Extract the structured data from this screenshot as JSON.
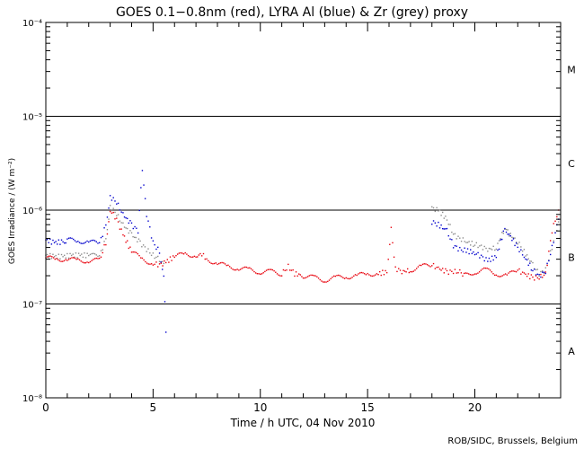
{
  "chart_data": {
    "type": "scatter",
    "title": "GOES 0.1−0.8nm (red), LYRA Al (blue) & Zr (grey) proxy",
    "xlabel": "Time / h UTC, 04 Nov 2010",
    "ylabel": "GOES Irradiance / (W m⁻²)",
    "credit": "ROB/SIDC, Brussels, Belgium",
    "xlim": [
      0,
      24
    ],
    "ylim": [
      1e-08,
      0.0001
    ],
    "yscale": "log",
    "x_ticks": [
      {
        "value": 0,
        "label": "0"
      },
      {
        "value": 5,
        "label": "5"
      },
      {
        "value": 10,
        "label": "10"
      },
      {
        "value": 15,
        "label": "15"
      },
      {
        "value": 20,
        "label": "20"
      }
    ],
    "y_ticks": [
      {
        "exp": -8,
        "label": "10⁻⁸"
      },
      {
        "exp": -7,
        "label": "10⁻⁷"
      },
      {
        "exp": -6,
        "label": "10⁻⁶"
      },
      {
        "exp": -5,
        "label": "10⁻⁵"
      },
      {
        "exp": -4,
        "label": "10⁻⁴"
      }
    ],
    "class_lines": [
      1e-07,
      1e-06,
      1e-05
    ],
    "flare_classes": [
      {
        "label": "A",
        "value": 3.16e-08
      },
      {
        "label": "B",
        "value": 3.16e-07
      },
      {
        "label": "C",
        "value": 3.16e-06
      },
      {
        "label": "M",
        "value": 3.16e-05
      }
    ],
    "colors": {
      "goes": "#e8000b",
      "al": "#0000cc",
      "zr": "#8c8c8c"
    },
    "series": [
      {
        "name": "GOES 0.1−0.8nm",
        "color": "red",
        "x": [
          0.0,
          0.5,
          1.0,
          1.5,
          2.0,
          2.5,
          2.8,
          3.0,
          3.3,
          3.6,
          4.0,
          4.5,
          5.0,
          5.3,
          5.6,
          6.0,
          6.5,
          7.0,
          7.2,
          7.5,
          8.0,
          8.5,
          9.0,
          9.5,
          10.0,
          10.5,
          11.0,
          11.3,
          11.6,
          12.0,
          12.5,
          13.0,
          13.5,
          14.0,
          14.5,
          15.0,
          15.5,
          15.9,
          16.1,
          16.3,
          16.6,
          17.0,
          17.5,
          18.0,
          18.3,
          18.7,
          19.0,
          19.3,
          19.5,
          20.0,
          20.5,
          21.0,
          21.5,
          22.0,
          22.3,
          22.7,
          23.0,
          23.3,
          23.6,
          23.9
        ],
        "y": [
          3.1e-07,
          3e-07,
          3e-07,
          2.9e-07,
          2.9e-07,
          2.9e-07,
          4.5e-07,
          1e-06,
          8e-07,
          5.5e-07,
          3.6e-07,
          3e-07,
          2.7e-07,
          2.6e-07,
          2.8e-07,
          3.2e-07,
          3.4e-07,
          3.3e-07,
          3.5e-07,
          3e-07,
          2.7e-07,
          2.5e-07,
          2.4e-07,
          2.3e-07,
          2.2e-07,
          2.2e-07,
          2.1e-07,
          2.5e-07,
          2.1e-07,
          2e-07,
          1.9e-07,
          1.8e-07,
          1.9e-07,
          1.95e-07,
          2e-07,
          2.1e-07,
          2.1e-07,
          2.2e-07,
          6.5e-07,
          2.4e-07,
          2.2e-07,
          2.3e-07,
          2.5e-07,
          2.6e-07,
          2.4e-07,
          2.2e-07,
          2.2e-07,
          2.2e-07,
          2e-07,
          2.2e-07,
          2.3e-07,
          2.1e-07,
          2e-07,
          2.3e-07,
          2.1e-07,
          1.9e-07,
          1.9e-07,
          2.1e-07,
          6e-07,
          1e-06
        ]
      },
      {
        "name": "LYRA Al",
        "color": "blue",
        "x": [
          0.0,
          0.4,
          0.8,
          1.0,
          1.5,
          2.0,
          2.5,
          2.8,
          3.0,
          3.3,
          3.6,
          4.0,
          4.3,
          4.5,
          4.7,
          5.0,
          5.3,
          5.5,
          5.6,
          18.0,
          18.3,
          18.7,
          19.0,
          19.3,
          19.6,
          20.0,
          20.3,
          20.6,
          21.0,
          21.4,
          21.6,
          22.0,
          22.3,
          22.7,
          23.0,
          23.3,
          23.6,
          23.9
        ],
        "y": [
          4.8e-07,
          4.5e-07,
          4.6e-07,
          4.8e-07,
          4.7e-07,
          4.6e-07,
          4.4e-07,
          7e-07,
          1.4e-06,
          1.2e-06,
          9e-07,
          7e-07,
          6e-07,
          2.8e-06,
          9e-07,
          4.5e-07,
          3.6e-07,
          2e-07,
          5e-08,
          7.5e-07,
          7e-07,
          6e-07,
          4.2e-07,
          3.8e-07,
          3.7e-07,
          3.5e-07,
          3.2e-07,
          2.9e-07,
          3.2e-07,
          6.5e-07,
          5.5e-07,
          4e-07,
          3.2e-07,
          2.3e-07,
          2e-07,
          2.2e-07,
          4e-07,
          8e-07
        ]
      },
      {
        "name": "LYRA Zr",
        "color": "grey",
        "x": [
          0.0,
          0.4,
          0.8,
          1.2,
          1.6,
          2.0,
          2.5,
          2.8,
          3.0,
          3.3,
          3.6,
          4.0,
          4.4,
          4.7,
          5.0,
          5.3,
          5.5,
          18.0,
          18.3,
          18.7,
          19.0,
          19.3,
          19.6,
          20.0,
          20.3,
          20.6,
          21.0,
          21.4,
          21.6,
          22.0,
          22.3,
          22.7,
          23.0,
          23.3,
          23.6,
          23.9
        ],
        "y": [
          3.3e-07,
          3.2e-07,
          3.2e-07,
          3.3e-07,
          3.3e-07,
          3.3e-07,
          3.2e-07,
          5e-07,
          1.1e-06,
          9e-07,
          7e-07,
          5.5e-07,
          4.5e-07,
          3.8e-07,
          3.3e-07,
          3e-07,
          2.7e-07,
          1.05e-06,
          1e-06,
          8e-07,
          5.5e-07,
          5e-07,
          4.6e-07,
          4.3e-07,
          4.1e-07,
          3.8e-07,
          4e-07,
          6.5e-07,
          5.6e-07,
          4.6e-07,
          3.6e-07,
          2.6e-07,
          2.1e-07,
          2.3e-07,
          4e-07,
          7.5e-07
        ]
      }
    ]
  }
}
